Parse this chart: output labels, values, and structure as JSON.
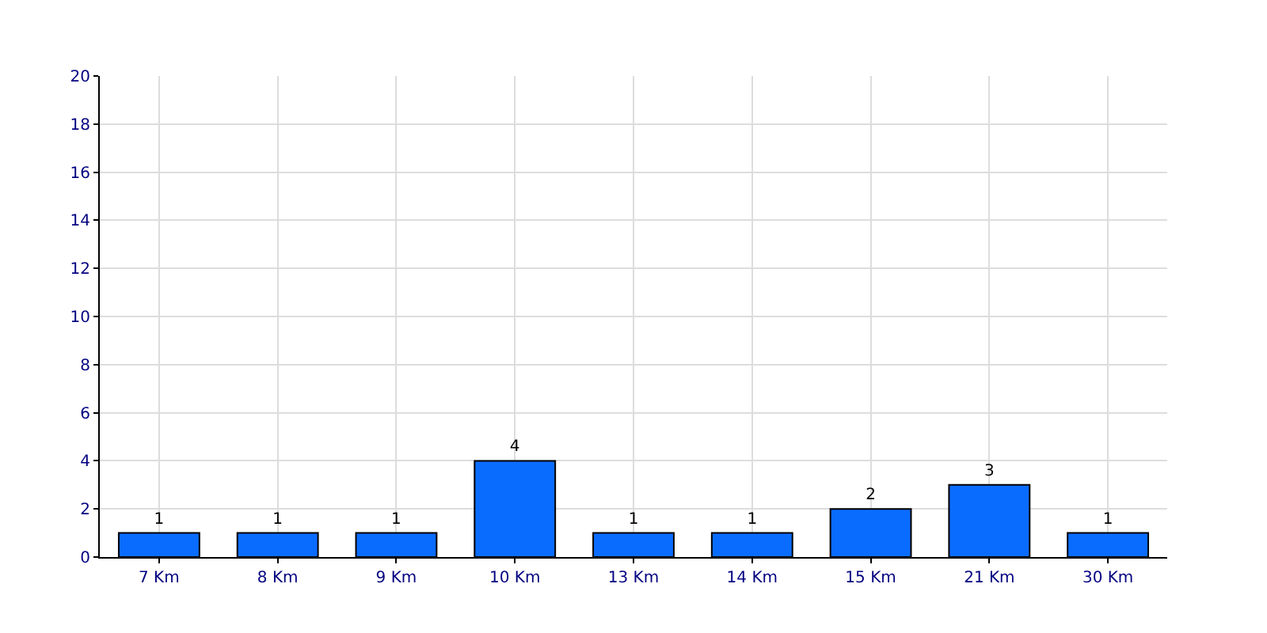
{
  "chart_data": {
    "type": "bar",
    "categories": [
      "7 Km",
      "8 Km",
      "9 Km",
      "10 Km",
      "13 Km",
      "14 Km",
      "15 Km",
      "21 Km",
      "30 Km"
    ],
    "values": [
      1,
      1,
      1,
      4,
      1,
      1,
      2,
      3,
      1
    ],
    "color": "#0a6cff",
    "ylim": [
      0,
      20
    ],
    "yticks": [
      0,
      2,
      4,
      6,
      8,
      10,
      12,
      14,
      16,
      18,
      20
    ],
    "grid": true,
    "data_labels": true,
    "legend": false
  }
}
